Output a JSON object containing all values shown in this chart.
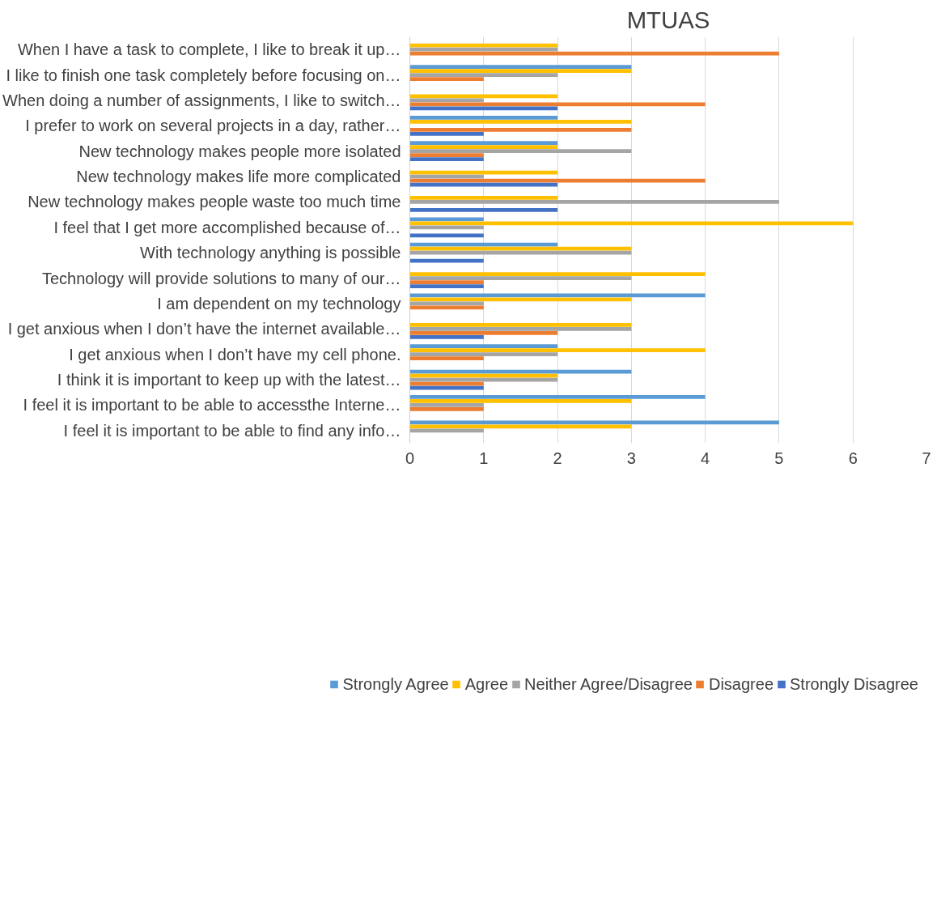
{
  "chart_data": {
    "type": "bar",
    "orientation": "horizontal",
    "title": "MTUAS",
    "categories": [
      "When I have a task to complete, I like to break it up…",
      "I like to finish one task completely before focusing on…",
      "When doing a number of assignments, I like to switch…",
      "I prefer to work on several projects in a day, rather…",
      "New technology makes people more isolated",
      "New technology makes life more complicated",
      "New technology makes people waste too much time",
      "I feel that I get more accomplished because of…",
      "With technology anything is possible",
      "Technology will provide solutions to many of our…",
      "I am dependent on my technology",
      "I get anxious when I don’t have the internet available…",
      "I get anxious when I don’t have my cell phone.",
      "I think it is important to keep up with the latest…",
      "I feel it is important to be able to accessthe Interne…",
      "I feel it is important to be able to find any info…"
    ],
    "series": [
      {
        "name": "Strongly Agree",
        "color": "#5b9bd5",
        "values": [
          0,
          3,
          0,
          2,
          2,
          0,
          0,
          1,
          2,
          0,
          4,
          0,
          2,
          3,
          4,
          5
        ]
      },
      {
        "name": "Agree",
        "color": "#ffc000",
        "values": [
          2,
          3,
          2,
          3,
          2,
          2,
          2,
          6,
          3,
          4,
          3,
          3,
          4,
          2,
          3,
          3
        ]
      },
      {
        "name": "Neither Agree/Disagree",
        "color": "#a5a5a5",
        "values": [
          2,
          2,
          1,
          0,
          3,
          1,
          5,
          1,
          3,
          3,
          1,
          3,
          2,
          2,
          1,
          1
        ]
      },
      {
        "name": "Disagree",
        "color": "#ed7d31",
        "values": [
          5,
          1,
          4,
          3,
          1,
          4,
          0,
          0,
          0,
          1,
          1,
          2,
          1,
          1,
          1,
          0
        ]
      },
      {
        "name": "Strongly Disagree",
        "color": "#4472c4",
        "values": [
          0,
          0,
          2,
          1,
          1,
          2,
          2,
          1,
          1,
          1,
          0,
          1,
          0,
          1,
          0,
          0
        ]
      }
    ],
    "xlim": [
      0,
      7
    ],
    "xticks": [
      0,
      1,
      2,
      3,
      4,
      5,
      6,
      7
    ],
    "grid": "x",
    "legend": "bottom"
  }
}
